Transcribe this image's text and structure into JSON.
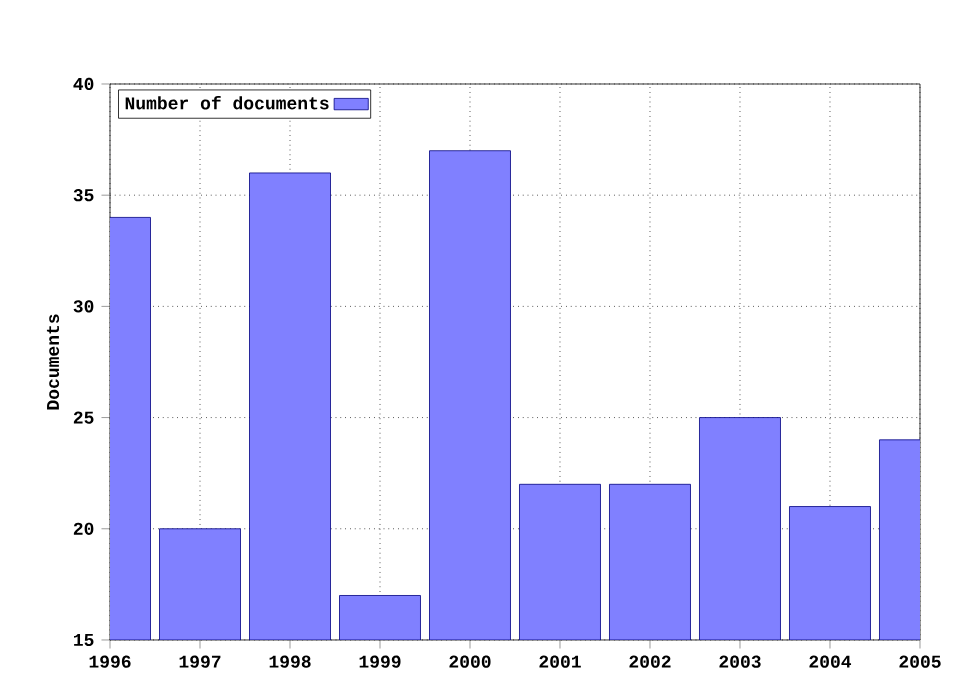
{
  "chart_data": {
    "type": "bar",
    "ylabel": "Documents",
    "x": [
      1996,
      1997,
      1998,
      1999,
      2000,
      2001,
      2002,
      2003,
      2004,
      2005
    ],
    "series": [
      {
        "name": "Number of documents",
        "color": "#8080ff",
        "values": [
          34,
          20,
          36,
          17,
          37,
          22,
          22,
          25,
          21,
          24
        ]
      }
    ],
    "xlim": [
      1996,
      2005
    ],
    "xticks": [
      1996,
      1997,
      1998,
      1999,
      2000,
      2001,
      2002,
      2003,
      2004,
      2005
    ],
    "ylim": [
      15,
      40
    ],
    "yticks": [
      15,
      20,
      25,
      30,
      35,
      40
    ],
    "grid": true,
    "legend": "top left"
  }
}
